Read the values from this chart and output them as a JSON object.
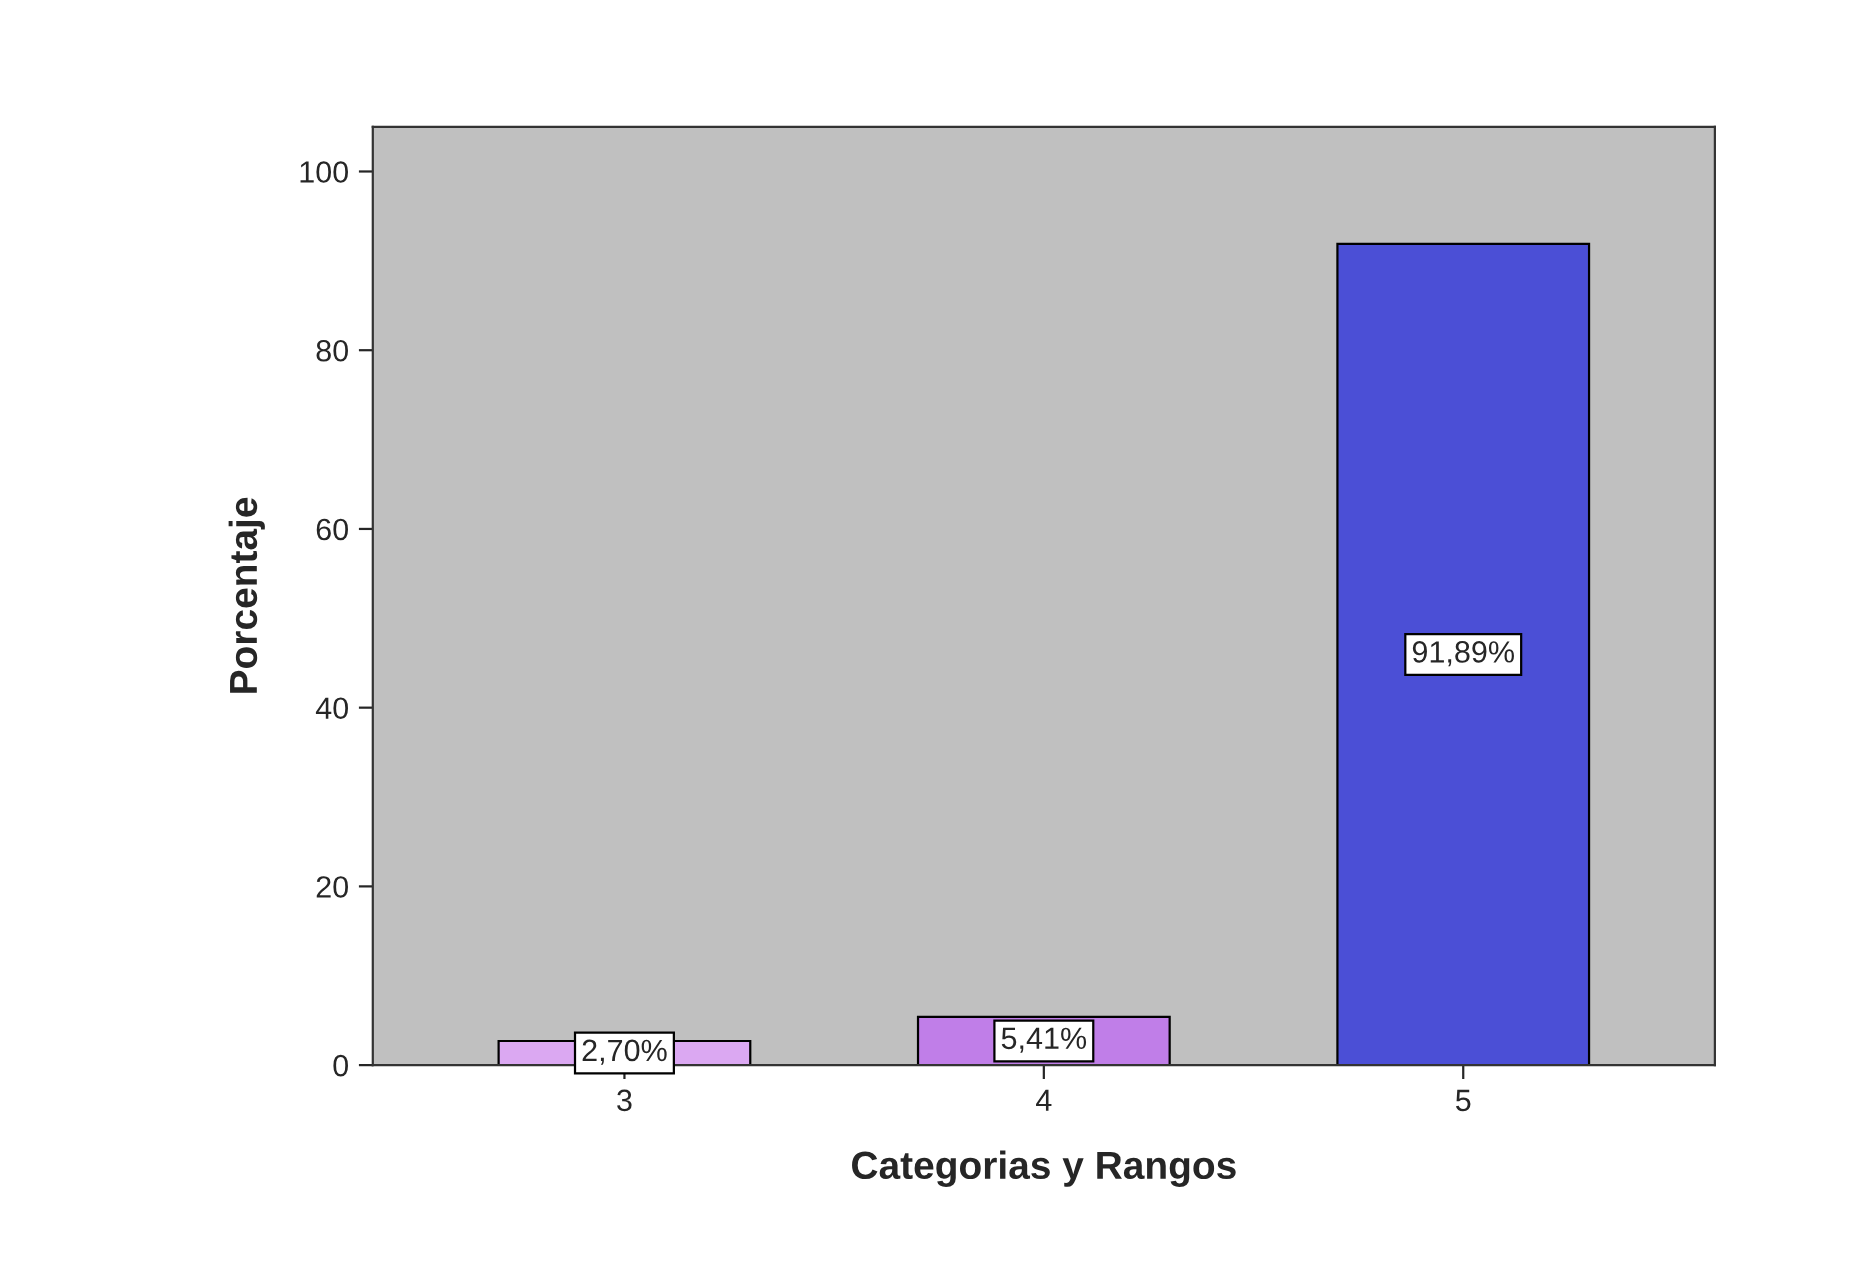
{
  "chart_data": {
    "type": "bar",
    "xlabel": "Categorias y Rangos",
    "ylabel": "Porcentaje",
    "categories": [
      "3",
      "4",
      "5"
    ],
    "values": [
      2.7,
      5.41,
      91.89
    ],
    "colors": [
      "#dba8f2",
      "#c07ee8",
      "#4b4fd6"
    ],
    "value_labels": [
      "2,70%",
      "5,41%",
      "91,89%"
    ],
    "ylim": [
      0,
      105
    ],
    "yticks": [
      0,
      20,
      40,
      60,
      80,
      100
    ],
    "grid": false
  }
}
